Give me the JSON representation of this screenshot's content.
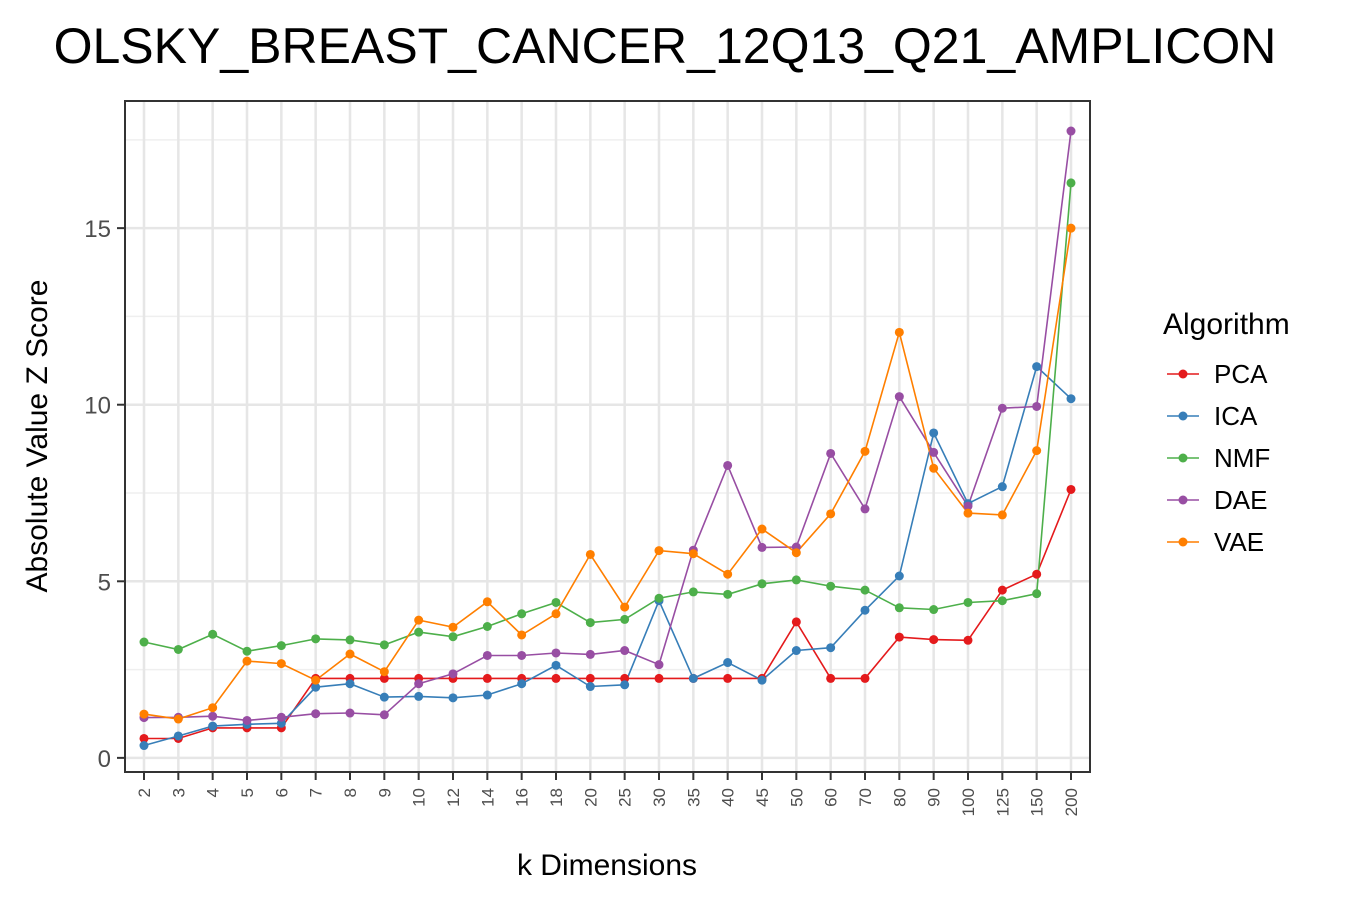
{
  "chart_data": {
    "type": "line",
    "title": "OLSKY_BREAST_CANCER_12Q13_Q21_AMPLICON",
    "xlabel": "k Dimensions",
    "ylabel": "Absolute Value Z Score",
    "categories": [
      "2",
      "3",
      "4",
      "5",
      "6",
      "7",
      "8",
      "9",
      "10",
      "12",
      "14",
      "16",
      "18",
      "20",
      "25",
      "30",
      "35",
      "40",
      "45",
      "50",
      "60",
      "70",
      "80",
      "90",
      "100",
      "125",
      "150",
      "200"
    ],
    "ylim": [
      -0.4,
      18.6
    ],
    "yticks": [
      0,
      5,
      10,
      15
    ],
    "grid": true,
    "legend": {
      "title": "Algorithm",
      "placement": "right"
    },
    "series": [
      {
        "name": "PCA",
        "color": "#E41A1C",
        "values": [
          0.55,
          0.55,
          0.85,
          0.85,
          0.85,
          2.25,
          2.25,
          2.25,
          2.25,
          2.25,
          2.25,
          2.25,
          2.25,
          2.25,
          2.25,
          2.25,
          2.25,
          2.25,
          2.25,
          3.85,
          2.25,
          2.25,
          3.42,
          3.35,
          3.33,
          4.75,
          5.2,
          7.6
        ]
      },
      {
        "name": "ICA",
        "color": "#377EB8",
        "values": [
          0.35,
          0.62,
          0.9,
          0.95,
          0.98,
          2.0,
          2.1,
          1.72,
          1.74,
          1.7,
          1.78,
          2.1,
          2.62,
          2.02,
          2.07,
          4.45,
          2.25,
          2.7,
          2.2,
          3.04,
          3.12,
          4.18,
          5.15,
          9.2,
          7.2,
          7.68,
          11.08,
          10.17
        ]
      },
      {
        "name": "NMF",
        "color": "#4DAF4A",
        "values": [
          3.28,
          3.07,
          3.5,
          3.02,
          3.18,
          3.37,
          3.34,
          3.2,
          3.56,
          3.43,
          3.72,
          4.08,
          4.4,
          3.83,
          3.92,
          4.52,
          4.7,
          4.63,
          4.93,
          5.04,
          4.86,
          4.75,
          4.25,
          4.2,
          4.4,
          4.45,
          4.65,
          16.28
        ]
      },
      {
        "name": "DAE",
        "color": "#984EA3",
        "values": [
          1.14,
          1.15,
          1.18,
          1.06,
          1.15,
          1.25,
          1.27,
          1.22,
          2.1,
          2.38,
          2.9,
          2.9,
          2.97,
          2.93,
          3.04,
          2.64,
          5.88,
          8.28,
          5.96,
          5.97,
          8.62,
          7.05,
          10.23,
          8.65,
          7.13,
          9.9,
          9.95,
          17.75
        ]
      },
      {
        "name": "VAE",
        "color": "#FF7F00",
        "values": [
          1.24,
          1.1,
          1.42,
          2.74,
          2.67,
          2.2,
          2.94,
          2.44,
          3.9,
          3.7,
          4.42,
          3.48,
          4.08,
          5.76,
          4.27,
          5.87,
          5.78,
          5.2,
          6.48,
          5.81,
          6.91,
          8.68,
          12.05,
          8.2,
          6.93,
          6.88,
          8.7,
          15.0
        ]
      }
    ]
  }
}
